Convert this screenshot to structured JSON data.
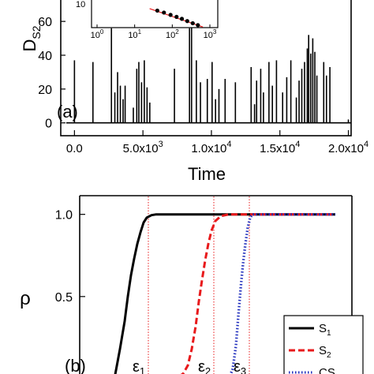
{
  "chart_data": [
    {
      "panel_label": "(a)",
      "type": "line",
      "xlabel": "Time",
      "ylabel": "D",
      "ylabel_sub": "S2",
      "xlim": [
        -1000,
        20200
      ],
      "ylim": [
        -2,
        75
      ],
      "x_ticks": [
        {
          "value": 0,
          "label": "0.0"
        },
        {
          "value": 5000,
          "label": "5.0x10",
          "exp": "3"
        },
        {
          "value": 10000,
          "label": "1.0x10",
          "exp": "4"
        },
        {
          "value": 15000,
          "label": "1.5x10",
          "exp": "4"
        },
        {
          "value": 20000,
          "label": "2.0x10",
          "exp": "4"
        }
      ],
      "y_ticks": [
        {
          "value": 0,
          "label": "0"
        },
        {
          "value": 20,
          "label": "20"
        },
        {
          "value": 40,
          "label": "40"
        },
        {
          "value": 60,
          "label": "60"
        }
      ],
      "spikes": [
        {
          "x": 0,
          "y": 37
        },
        {
          "x": 1350,
          "y": 36
        },
        {
          "x": 2700,
          "y": 56
        },
        {
          "x": 2950,
          "y": 18
        },
        {
          "x": 3150,
          "y": 30
        },
        {
          "x": 3350,
          "y": 22
        },
        {
          "x": 3550,
          "y": 14
        },
        {
          "x": 3700,
          "y": 22
        },
        {
          "x": 4300,
          "y": 9
        },
        {
          "x": 4550,
          "y": 32
        },
        {
          "x": 4700,
          "y": 36
        },
        {
          "x": 4900,
          "y": 24
        },
        {
          "x": 5100,
          "y": 37
        },
        {
          "x": 5300,
          "y": 21
        },
        {
          "x": 5500,
          "y": 12
        },
        {
          "x": 7300,
          "y": 32
        },
        {
          "x": 8400,
          "y": 56
        },
        {
          "x": 8550,
          "y": 60
        },
        {
          "x": 8900,
          "y": 37
        },
        {
          "x": 9200,
          "y": 24
        },
        {
          "x": 9700,
          "y": 26
        },
        {
          "x": 10050,
          "y": 36
        },
        {
          "x": 10300,
          "y": 14
        },
        {
          "x": 10550,
          "y": 20
        },
        {
          "x": 11000,
          "y": 26
        },
        {
          "x": 11750,
          "y": 24
        },
        {
          "x": 12900,
          "y": 33
        },
        {
          "x": 13150,
          "y": 11
        },
        {
          "x": 13300,
          "y": 25
        },
        {
          "x": 13600,
          "y": 32
        },
        {
          "x": 13800,
          "y": 18
        },
        {
          "x": 14200,
          "y": 36
        },
        {
          "x": 14450,
          "y": 22
        },
        {
          "x": 14750,
          "y": 37
        },
        {
          "x": 15200,
          "y": 18
        },
        {
          "x": 15500,
          "y": 27
        },
        {
          "x": 15800,
          "y": 37
        },
        {
          "x": 16200,
          "y": 15
        },
        {
          "x": 16400,
          "y": 25
        },
        {
          "x": 16600,
          "y": 32
        },
        {
          "x": 16800,
          "y": 36
        },
        {
          "x": 17000,
          "y": 44
        },
        {
          "x": 17100,
          "y": 52
        },
        {
          "x": 17250,
          "y": 41
        },
        {
          "x": 17400,
          "y": 50
        },
        {
          "x": 17550,
          "y": 42
        },
        {
          "x": 17700,
          "y": 28
        },
        {
          "x": 18200,
          "y": 36
        },
        {
          "x": 18400,
          "y": 28
        },
        {
          "x": 18650,
          "y": 33
        },
        {
          "x": 20000,
          "y": 2
        }
      ],
      "inset": {
        "x_scale": "log",
        "y_scale": "log",
        "x_ticks": [
          {
            "value": 1,
            "label": "10",
            "exp": "0"
          },
          {
            "value": 10,
            "label": "10",
            "exp": "1"
          },
          {
            "value": 100,
            "label": "10",
            "exp": "2"
          },
          {
            "value": 1000,
            "label": "10",
            "exp": "3"
          }
        ],
        "y_tick_label": "10",
        "points": [
          {
            "x": 40,
            "y": 0.06
          },
          {
            "x": 60,
            "y": 0.045
          },
          {
            "x": 90,
            "y": 0.032
          },
          {
            "x": 130,
            "y": 0.024
          },
          {
            "x": 180,
            "y": 0.018
          },
          {
            "x": 250,
            "y": 0.013
          },
          {
            "x": 350,
            "y": 0.0095
          },
          {
            "x": 480,
            "y": 0.0072
          }
        ],
        "fit_line": [
          {
            "x": 25,
            "y": 0.08
          },
          {
            "x": 650,
            "y": 0.0055
          }
        ]
      }
    },
    {
      "panel_label": "(b)",
      "type": "line",
      "ylabel": "ρ",
      "ylim": [
        0,
        1.08
      ],
      "y_ticks": [
        {
          "value": 0.5,
          "label": "0.5"
        },
        {
          "value": 1.0,
          "label": "1.0"
        }
      ],
      "series": [
        {
          "name": "S",
          "sub": "1",
          "color": "#000000",
          "style": "solid",
          "x": [
            145,
            152,
            158,
            162,
            166,
            170,
            174,
            178,
            182,
            186,
            192,
            198,
            215,
            240,
            290,
            350,
            425
          ],
          "y": [
            0.0,
            0.18,
            0.35,
            0.5,
            0.63,
            0.73,
            0.82,
            0.89,
            0.95,
            0.98,
            0.995,
            1.0,
            1.0,
            1.0,
            1.0,
            1.0,
            1.0
          ]
        },
        {
          "name": "S",
          "sub": "2",
          "color": "#e8191b",
          "style": "dashed",
          "x": [
            215,
            225,
            232,
            238,
            243,
            248,
            252,
            256,
            260,
            264,
            268,
            273,
            280,
            290,
            305,
            330,
            380,
            425
          ],
          "y": [
            0.0,
            0.01,
            0.03,
            0.08,
            0.18,
            0.32,
            0.47,
            0.6,
            0.72,
            0.82,
            0.9,
            0.96,
            0.99,
            1.0,
            1.0,
            1.0,
            1.0,
            1.0
          ]
        },
        {
          "name": "CS",
          "color": "#1f2dbd",
          "style": "dotted",
          "x": [
            290,
            295,
            299,
            302,
            305,
            308,
            311,
            314,
            317,
            320,
            330,
            360,
            400,
            425
          ],
          "y": [
            0.0,
            0.06,
            0.2,
            0.38,
            0.55,
            0.7,
            0.82,
            0.92,
            0.98,
            1.0,
            1.0,
            1.0,
            1.0,
            1.0
          ]
        }
      ],
      "thresholds": [
        {
          "label": "ε",
          "sub": "1",
          "x": 188
        },
        {
          "label": "ε",
          "sub": "2",
          "x": 271
        },
        {
          "label": "ε",
          "sub": "3",
          "x": 316
        }
      ]
    }
  ]
}
